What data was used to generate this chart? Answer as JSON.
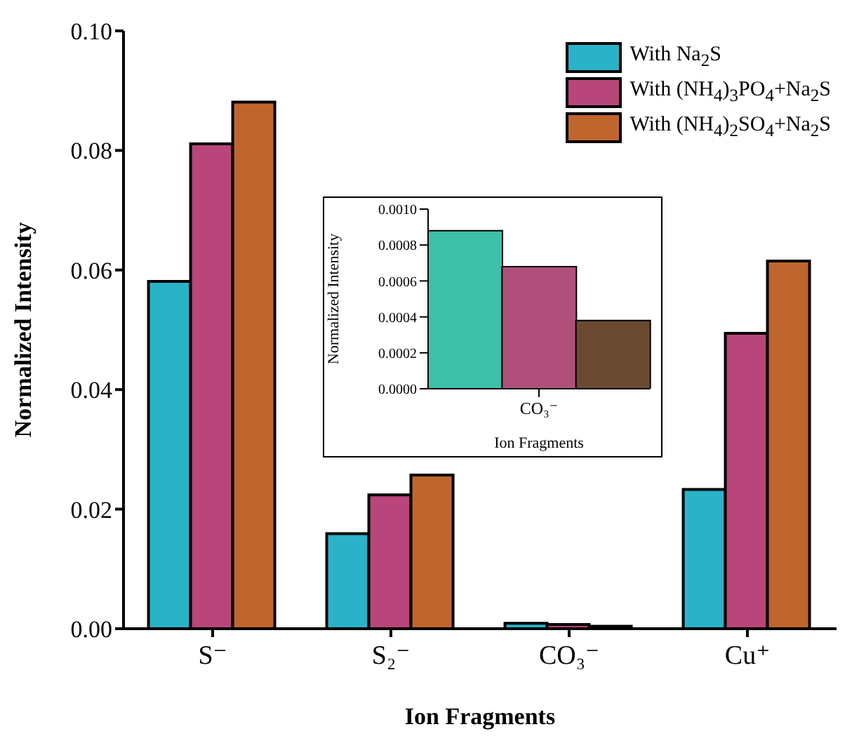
{
  "chart_data": [
    {
      "type": "bar",
      "xlabel": "Ion Fragments",
      "ylabel": "Normalized Intensity",
      "categories": [
        "S⁻",
        "S₂⁻",
        "CO₃⁻",
        "Cu⁺"
      ],
      "series": [
        {
          "name": "With Na$_{2}$S",
          "color": "#2ab3c8",
          "values": [
            0.0581,
            0.0159,
            0.0009,
            0.0233
          ]
        },
        {
          "name": "With (NH$_{4}$)$_{3}$PO$_{4}$+Na$_{2}$S",
          "color": "#b8467a",
          "values": [
            0.0811,
            0.0224,
            0.0007,
            0.0494
          ]
        },
        {
          "name": "With (NH$_{4}$)$_{2}$SO$_{4}$+Na$_{2}$S",
          "color": "#c0652e",
          "values": [
            0.0881,
            0.0257,
            0.0004,
            0.0615
          ]
        }
      ],
      "ylim": [
        0,
        0.1
      ],
      "yticks": [
        {
          "value": 0,
          "label": "0.00"
        },
        {
          "value": 0.02,
          "label": "0.02"
        },
        {
          "value": 0.04,
          "label": "0.04"
        },
        {
          "value": 0.06,
          "label": "0.06"
        },
        {
          "value": 0.08,
          "label": "0.08"
        },
        {
          "value": 0.1,
          "label": "0.10"
        }
      ],
      "legend": "top right"
    },
    {
      "type": "bar",
      "xlabel": "Ion Fragments",
      "ylabel": "Normalized Intensity",
      "categories": [
        null,
        "CO₃⁻",
        null
      ],
      "series": [
        {
          "colors": [
            "#3dbfa8",
            "#b0507a",
            "#6b4a32"
          ],
          "values": [
            0.00088,
            0.00068,
            0.00038
          ]
        }
      ],
      "ylim": [
        0,
        0.001
      ],
      "yticks": [
        {
          "value": 0,
          "label": "0.0000"
        },
        {
          "value": 0.0002,
          "label": "0.0002"
        },
        {
          "value": 0.0004,
          "label": "0.0004"
        },
        {
          "value": 0.0006,
          "label": "0.0006"
        },
        {
          "value": 0.0008,
          "label": "0.0008"
        },
        {
          "value": 0.001,
          "label": "0.0010"
        }
      ]
    }
  ]
}
